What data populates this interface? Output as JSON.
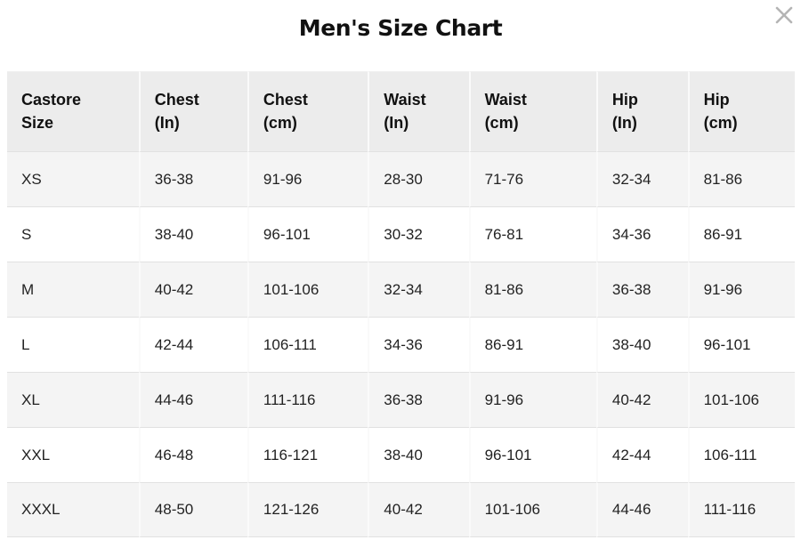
{
  "page": {
    "title": "Men's Size Chart"
  },
  "icons": {
    "close": "x-mark"
  },
  "colors": {
    "header_bg": "#ececec",
    "stripe_row_bg": "#f4f4f4",
    "row_divider": "#e1e1e1",
    "column_divider": "#fafafa",
    "close_icon": "#b4b4b4",
    "text": "#111111"
  },
  "table": {
    "headers": [
      {
        "l1": "Castore",
        "l2": "Size"
      },
      {
        "l1": "Chest",
        "l2": "(In)"
      },
      {
        "l1": "Chest",
        "l2": "(cm)"
      },
      {
        "l1": "Waist",
        "l2": "(In)"
      },
      {
        "l1": "Waist",
        "l2": "(cm)"
      },
      {
        "l1": "Hip",
        "l2": "(In)"
      },
      {
        "l1": "Hip",
        "l2": "(cm)"
      }
    ],
    "rows": [
      {
        "size": "XS",
        "values": [
          "36-38",
          "91-96",
          "28-30",
          "71-76",
          "32-34",
          "81-86"
        ]
      },
      {
        "size": "S",
        "values": [
          "38-40",
          "96-101",
          "30-32",
          "76-81",
          "34-36",
          "86-91"
        ]
      },
      {
        "size": "M",
        "values": [
          "40-42",
          "101-106",
          "32-34",
          "81-86",
          "36-38",
          "91-96"
        ]
      },
      {
        "size": "L",
        "values": [
          "42-44",
          "106-111",
          "34-36",
          "86-91",
          "38-40",
          "96-101"
        ]
      },
      {
        "size": "XL",
        "values": [
          "44-46",
          "111-116",
          "36-38",
          "91-96",
          "40-42",
          "101-106"
        ]
      },
      {
        "size": "XXL",
        "values": [
          "46-48",
          "116-121",
          "38-40",
          "96-101",
          "42-44",
          "106-111"
        ]
      },
      {
        "size": "XXXL",
        "values": [
          "48-50",
          "121-126",
          "40-42",
          "101-106",
          "44-46",
          "111-116"
        ]
      }
    ]
  }
}
